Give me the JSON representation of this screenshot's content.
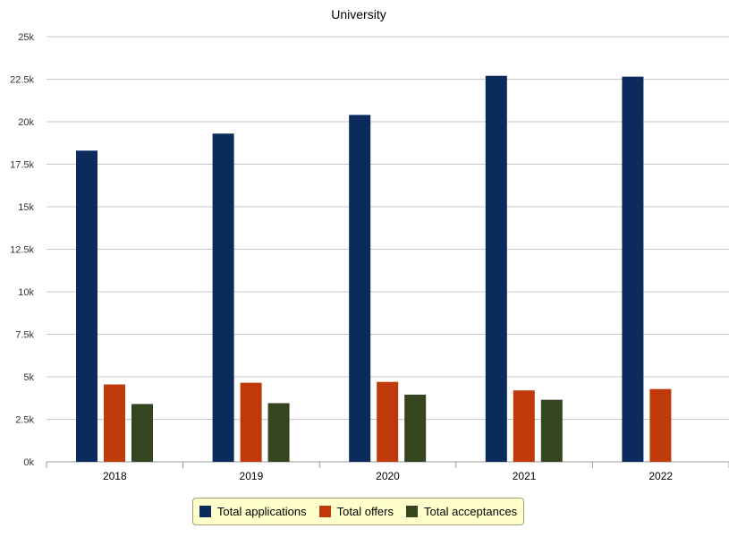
{
  "chart_data": {
    "type": "bar",
    "title": "University",
    "xlabel": "",
    "ylabel": "",
    "categories": [
      "2018",
      "2019",
      "2020",
      "2021",
      "2022"
    ],
    "series": [
      {
        "name": "Total applications",
        "color": "#0a2b5c",
        "values": [
          18300,
          19300,
          20400,
          22700,
          22650
        ]
      },
      {
        "name": "Total offers",
        "color": "#c0390b",
        "values": [
          4550,
          4650,
          4700,
          4200,
          4280
        ]
      },
      {
        "name": "Total acceptances",
        "color": "#354520",
        "values": [
          3400,
          3450,
          3950,
          3650,
          null
        ]
      }
    ],
    "ylim": [
      0,
      25000
    ],
    "yticks": [
      "0k",
      "2.5k",
      "5k",
      "7.5k",
      "10k",
      "12.5k",
      "15k",
      "17.5k",
      "20k",
      "22.5k",
      "25k"
    ],
    "grid": true,
    "legend_position": "bottom"
  }
}
